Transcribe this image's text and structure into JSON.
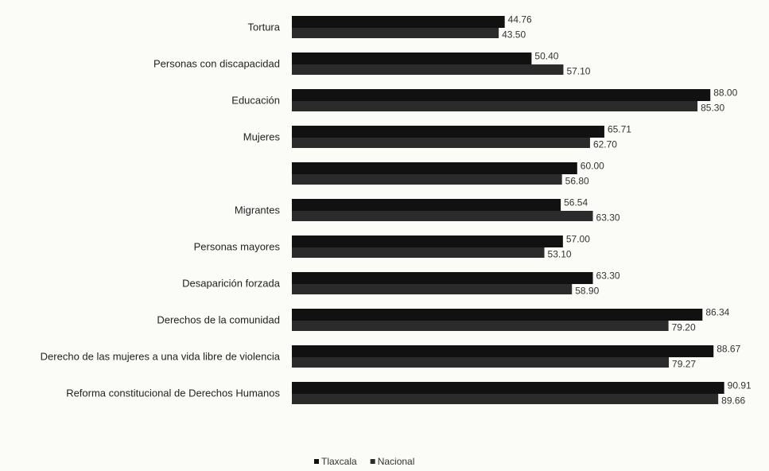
{
  "chart_data": {
    "type": "hbar",
    "categories": [
      "Tortura",
      "Personas con discapacidad",
      "Educación",
      "Mujeres",
      null,
      "Migrantes",
      "Personas mayores",
      "Desaparición forzada",
      "Derechos de la comunidad",
      "Derecho de las mujeres a una vida libre de violencia",
      "Reforma constitucional de Derechos Humanos"
    ],
    "series": [
      {
        "name": "Tlaxcala",
        "color": "#111111",
        "values": [
          44.76,
          50.4,
          88.0,
          65.71,
          60.0,
          56.54,
          57.0,
          63.3,
          86.34,
          88.67,
          90.91
        ],
        "value_labels": [
          "44.76",
          "50.40",
          "88.00",
          "65.71",
          "60.00",
          "56.54",
          "57.00",
          "63.30",
          "86.34",
          "88.67",
          "90.91"
        ]
      },
      {
        "name": "Nacional",
        "color": "#2b2b2b",
        "values": [
          43.5,
          57.1,
          85.3,
          62.7,
          56.8,
          63.3,
          53.1,
          58.9,
          79.2,
          79.27,
          89.66
        ],
        "value_labels": [
          "43.50",
          "57.10",
          "85.30",
          "62.70",
          "56.80",
          "63.30",
          "53.10",
          "58.90",
          "79.20",
          "79.27",
          "89.66"
        ]
      }
    ],
    "xlim": [
      0,
      100
    ],
    "legend": "bottom"
  }
}
